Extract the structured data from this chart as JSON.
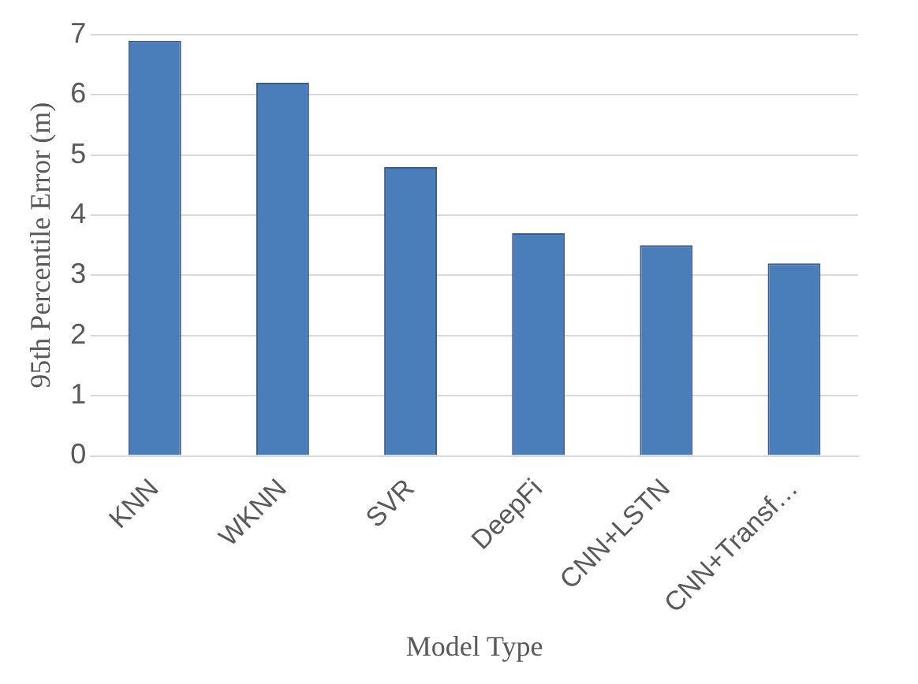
{
  "chart_data": {
    "type": "bar",
    "xlabel": "Model Type",
    "ylabel": "95th Percentile Error (m)",
    "categories": [
      "KNN",
      "WKNN",
      "SVR",
      "DeepFi",
      "CNN+LSTN",
      "CNN+Transf…"
    ],
    "values": [
      6.9,
      6.2,
      4.8,
      3.7,
      3.5,
      3.2
    ],
    "color": "#4a7ebb",
    "ylim": [
      0,
      7
    ],
    "yticks": [
      0,
      1,
      2,
      3,
      4,
      5,
      6,
      7
    ],
    "grid": "y",
    "legend": false
  }
}
